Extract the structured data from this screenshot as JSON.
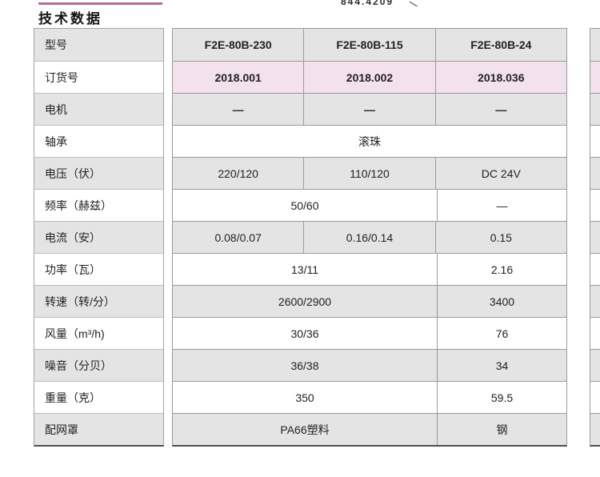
{
  "page": {
    "title": "技术数据",
    "partial_top_text": "844.4209"
  },
  "colors": {
    "accent_line": "#b06f94",
    "cell_gray": "#e4e4e4",
    "cell_pink": "#f3e2ed",
    "border": "#9a9a9a",
    "bottom_border": "#4f4f4f"
  },
  "table": {
    "rows": [
      {
        "label": "型号",
        "cells": [
          "F2E-80B-230",
          "F2E-80B-115",
          "F2E-80B-24"
        ]
      },
      {
        "label": "订货号",
        "cells": [
          "2018.001",
          "2018.002",
          "2018.036"
        ]
      },
      {
        "label": "电机",
        "cells": [
          "—",
          "—",
          "—"
        ]
      },
      {
        "label": "轴承",
        "span": "滚珠"
      },
      {
        "label": "电压（伏）",
        "cells": [
          "220/120",
          "110/120",
          "DC 24V"
        ]
      },
      {
        "label": "频率（赫兹）",
        "span2": "50/60",
        "last": "—"
      },
      {
        "label": "电流（安）",
        "cells": [
          "0.08/0.07",
          "0.16/0.14",
          "0.15"
        ]
      },
      {
        "label": "功率（瓦）",
        "span2": "13/11",
        "last": "2.16"
      },
      {
        "label": "转速（转/分）",
        "span2": "2600/2900",
        "last": "3400"
      },
      {
        "label": "风量（m³/h)",
        "span2": "30/36",
        "last": "76"
      },
      {
        "label": "噪音（分贝）",
        "span2": "36/38",
        "last": "34"
      },
      {
        "label": "重量（克）",
        "span2": "350",
        "last": "59.5"
      },
      {
        "label": "配网罩",
        "span2": "PA66塑料",
        "last": "钢"
      }
    ]
  }
}
